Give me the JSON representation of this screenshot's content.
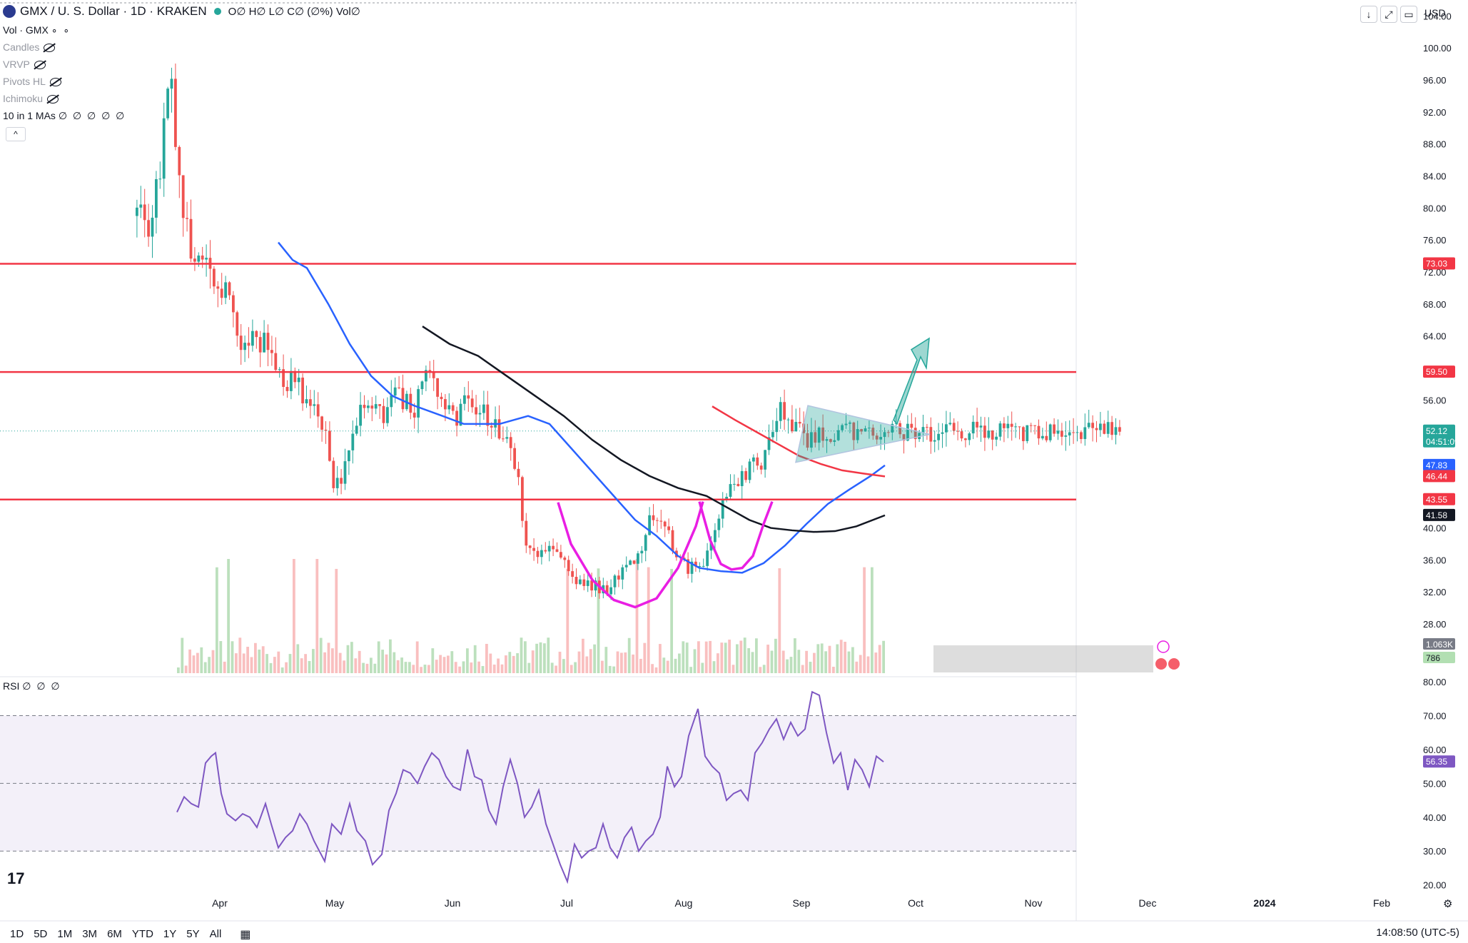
{
  "header": {
    "symbol": "GMX / U. S. Dollar · 1D · KRAKEN",
    "ohlc": "O∅ H∅ L∅ C∅ (∅%) Vol∅",
    "currency": "USD"
  },
  "legend": {
    "vol": "Vol · GMX",
    "candles": "Candles",
    "vrvp": "VRVP",
    "pivots": "Pivots HL",
    "ichimoku": "Ichimoku",
    "mas": "10 in 1 MAs",
    "mas_params": "∅ ∅ ∅ ∅ ∅",
    "collapse": "^"
  },
  "rsi_panel": {
    "label": "RSI",
    "params": "∅ ∅ ∅"
  },
  "toolbar": {
    "timeframes": [
      "1D",
      "5D",
      "1M",
      "3M",
      "6M",
      "YTD",
      "1Y",
      "5Y",
      "All"
    ],
    "clock": "14:08:50 (UTC-5)"
  },
  "chart_data": {
    "type": "candlestick",
    "x_axis_labels": [
      "Apr",
      "May",
      "Jun",
      "Jul",
      "Aug",
      "Sep",
      "Oct",
      "Nov",
      "Dec",
      "2024",
      "Feb"
    ],
    "y_ticks": [
      "104.00",
      "100.00",
      "96.00",
      "92.00",
      "88.00",
      "84.00",
      "80.00",
      "76.00",
      "72.00",
      "68.00",
      "64.00",
      "56.00",
      "40.00",
      "36.00",
      "32.00",
      "28.00"
    ],
    "ylim": [
      21.4,
      106
    ],
    "rsi_ticks": [
      "80.00",
      "70.00",
      "60.00",
      "50.00",
      "40.00",
      "30.00",
      "20.00"
    ],
    "rsi_lim": [
      17.4,
      80
    ],
    "price_badges": [
      {
        "label": "73.03",
        "value": 73.03,
        "color": "#f23645"
      },
      {
        "label": "59.50",
        "value": 59.5,
        "color": "#f23645"
      },
      {
        "label": "52.12",
        "value": 52.12,
        "color": "#26a69a",
        "sub": "04:51:09"
      },
      {
        "label": "47.83",
        "value": 47.83,
        "color": "#2962ff"
      },
      {
        "label": "46.44",
        "value": 46.44,
        "color": "#f23645"
      },
      {
        "label": "43.55",
        "value": 43.55,
        "color": "#f23645"
      },
      {
        "label": "41.58",
        "value": 41.58,
        "color": "#131722"
      }
    ],
    "vol_badges": [
      {
        "label": "1.063K",
        "color": "#787b86"
      },
      {
        "label": "786",
        "color": "#b2dfb2"
      }
    ],
    "rsi_badge": {
      "label": "56.35",
      "value": 56.35,
      "color": "#7e57c2"
    },
    "horizontal_lines": [
      73.03,
      59.5,
      43.55
    ],
    "price_path": [
      [
        190,
        83
      ],
      [
        200,
        80
      ],
      [
        210,
        72
      ],
      [
        220,
        77
      ],
      [
        235,
        75
      ],
      [
        250,
        79
      ],
      [
        270,
        78
      ],
      [
        283,
        86
      ],
      [
        296,
        98
      ],
      [
        305,
        86
      ],
      [
        315,
        80
      ],
      [
        325,
        74
      ],
      [
        345,
        73
      ],
      [
        360,
        71
      ],
      [
        375,
        69
      ],
      [
        388,
        65
      ],
      [
        400,
        63
      ],
      [
        415,
        64
      ],
      [
        430,
        63
      ],
      [
        445,
        60
      ],
      [
        455,
        57
      ],
      [
        470,
        59
      ],
      [
        485,
        56
      ],
      [
        500,
        54
      ],
      [
        515,
        52
      ],
      [
        525,
        45
      ],
      [
        535,
        46
      ],
      [
        550,
        51
      ],
      [
        565,
        55
      ],
      [
        580,
        55
      ],
      [
        595,
        54
      ],
      [
        610,
        57
      ],
      [
        625,
        56
      ],
      [
        640,
        55
      ],
      [
        658,
        60
      ],
      [
        670,
        58
      ],
      [
        685,
        55
      ],
      [
        695,
        53
      ],
      [
        710,
        57
      ],
      [
        725,
        55
      ],
      [
        740,
        54
      ],
      [
        755,
        53
      ],
      [
        770,
        50
      ],
      [
        785,
        46
      ],
      [
        793,
        39
      ],
      [
        805,
        37
      ],
      [
        820,
        37
      ],
      [
        835,
        37
      ],
      [
        850,
        36
      ],
      [
        862,
        34
      ],
      [
        878,
        33
      ],
      [
        890,
        33
      ],
      [
        905,
        32
      ],
      [
        918,
        33
      ],
      [
        930,
        35
      ],
      [
        945,
        36
      ],
      [
        958,
        37
      ],
      [
        968,
        42
      ],
      [
        978,
        42
      ],
      [
        990,
        41
      ],
      [
        1000,
        38
      ],
      [
        1010,
        36
      ],
      [
        1022,
        35
      ],
      [
        1035,
        35
      ],
      [
        1048,
        36
      ],
      [
        1060,
        39
      ],
      [
        1072,
        43
      ],
      [
        1082,
        46
      ],
      [
        1092,
        45
      ],
      [
        1102,
        47
      ],
      [
        1115,
        48
      ],
      [
        1128,
        48
      ],
      [
        1140,
        52
      ],
      [
        1150,
        55
      ],
      [
        1160,
        53
      ],
      [
        1170,
        52
      ],
      [
        1180,
        53
      ],
      [
        1190,
        51
      ],
      [
        1200,
        52
      ],
      [
        1210,
        51
      ],
      [
        1220,
        52
      ],
      [
        1230,
        52
      ],
      [
        1240,
        52.1
      ]
    ],
    "ma_blue": [
      [
        390,
        75.7
      ],
      [
        410,
        73.5
      ],
      [
        430,
        72.5
      ],
      [
        460,
        68
      ],
      [
        490,
        63
      ],
      [
        520,
        59
      ],
      [
        550,
        56.5
      ],
      [
        580,
        55.3
      ],
      [
        620,
        54
      ],
      [
        650,
        53
      ],
      [
        700,
        53
      ],
      [
        740,
        54
      ],
      [
        770,
        53
      ],
      [
        800,
        50
      ],
      [
        830,
        47
      ],
      [
        860,
        44
      ],
      [
        890,
        41
      ],
      [
        920,
        39
      ],
      [
        950,
        36.5
      ],
      [
        980,
        35
      ],
      [
        1010,
        34.6
      ],
      [
        1040,
        34.4
      ],
      [
        1070,
        35.6
      ],
      [
        1100,
        37.8
      ],
      [
        1130,
        40.5
      ],
      [
        1160,
        43
      ],
      [
        1190,
        44.8
      ],
      [
        1220,
        46.5
      ],
      [
        1240,
        47.83
      ]
    ],
    "ma_black": [
      [
        592,
        65.2
      ],
      [
        630,
        63
      ],
      [
        670,
        61.5
      ],
      [
        710,
        59
      ],
      [
        750,
        56.5
      ],
      [
        790,
        54
      ],
      [
        830,
        51
      ],
      [
        870,
        48.5
      ],
      [
        910,
        46.5
      ],
      [
        950,
        45
      ],
      [
        990,
        44
      ],
      [
        1020,
        42.5
      ],
      [
        1050,
        41
      ],
      [
        1080,
        40
      ],
      [
        1110,
        39.7
      ],
      [
        1140,
        39.5
      ],
      [
        1170,
        39.6
      ],
      [
        1200,
        40.2
      ],
      [
        1240,
        41.58
      ]
    ],
    "ma_red": [
      [
        998,
        55.2
      ],
      [
        1030,
        53.5
      ],
      [
        1060,
        52
      ],
      [
        1090,
        50.5
      ],
      [
        1120,
        49
      ],
      [
        1150,
        48
      ],
      [
        1180,
        47.2
      ],
      [
        1210,
        46.8
      ],
      [
        1240,
        46.44
      ]
    ],
    "triangle": [
      [
        1132,
        55.3
      ],
      [
        1303,
        51.7
      ],
      [
        1115,
        48.2
      ]
    ],
    "arrow": [
      [
        1252,
        53.5
      ],
      [
        1285,
        61
      ],
      [
        1277,
        62.3
      ],
      [
        1302,
        63.7
      ],
      [
        1298,
        60
      ],
      [
        1290,
        61.4
      ],
      [
        1257,
        53
      ]
    ],
    "cup_left": [
      [
        782,
        43.2
      ],
      [
        800,
        38
      ],
      [
        830,
        33.5
      ],
      [
        860,
        31
      ],
      [
        890,
        30.1
      ],
      [
        920,
        31.2
      ],
      [
        950,
        35
      ],
      [
        975,
        40.2
      ],
      [
        985,
        43.3
      ]
    ],
    "cup_right": [
      [
        980,
        43.3
      ],
      [
        995,
        38.5
      ],
      [
        1010,
        35.5
      ],
      [
        1025,
        34.8
      ],
      [
        1040,
        35
      ],
      [
        1055,
        36.5
      ],
      [
        1070,
        40.5
      ],
      [
        1082,
        43.3
      ]
    ],
    "rsi_path": [
      [
        248,
        41.5
      ],
      [
        258,
        46
      ],
      [
        268,
        44
      ],
      [
        278,
        43
      ],
      [
        288,
        56
      ],
      [
        296,
        58
      ],
      [
        302,
        59
      ],
      [
        310,
        47
      ],
      [
        318,
        41
      ],
      [
        330,
        39
      ],
      [
        340,
        41
      ],
      [
        350,
        40
      ],
      [
        360,
        37
      ],
      [
        372,
        44
      ],
      [
        380,
        38
      ],
      [
        390,
        31
      ],
      [
        400,
        34
      ],
      [
        410,
        36
      ],
      [
        420,
        41
      ],
      [
        430,
        38
      ],
      [
        440,
        33
      ],
      [
        455,
        27
      ],
      [
        465,
        38
      ],
      [
        478,
        35
      ],
      [
        490,
        44
      ],
      [
        500,
        36
      ],
      [
        512,
        33
      ],
      [
        522,
        26
      ],
      [
        535,
        29
      ],
      [
        545,
        42
      ],
      [
        555,
        47
      ],
      [
        565,
        54
      ],
      [
        575,
        53
      ],
      [
        585,
        50
      ],
      [
        595,
        55
      ],
      [
        605,
        59
      ],
      [
        615,
        57
      ],
      [
        625,
        52
      ],
      [
        635,
        49
      ],
      [
        645,
        48
      ],
      [
        655,
        60
      ],
      [
        665,
        52
      ],
      [
        675,
        51
      ],
      [
        685,
        42
      ],
      [
        695,
        38
      ],
      [
        705,
        49
      ],
      [
        715,
        57
      ],
      [
        725,
        50
      ],
      [
        735,
        40
      ],
      [
        745,
        43
      ],
      [
        755,
        48
      ],
      [
        765,
        38
      ],
      [
        775,
        32
      ],
      [
        785,
        26
      ],
      [
        795,
        21
      ],
      [
        805,
        32
      ],
      [
        815,
        28
      ],
      [
        825,
        30
      ],
      [
        835,
        31
      ],
      [
        845,
        38
      ],
      [
        855,
        31
      ],
      [
        865,
        28
      ],
      [
        875,
        34
      ],
      [
        885,
        37
      ],
      [
        895,
        30
      ],
      [
        905,
        33
      ],
      [
        915,
        35
      ],
      [
        925,
        40
      ],
      [
        935,
        55
      ],
      [
        945,
        49
      ],
      [
        955,
        52
      ],
      [
        965,
        64
      ],
      [
        978,
        72
      ],
      [
        988,
        58
      ],
      [
        998,
        55
      ],
      [
        1008,
        53
      ],
      [
        1018,
        45
      ],
      [
        1028,
        47
      ],
      [
        1038,
        48
      ],
      [
        1048,
        45
      ],
      [
        1058,
        59
      ],
      [
        1068,
        62
      ],
      [
        1078,
        66
      ],
      [
        1088,
        69
      ],
      [
        1098,
        63
      ],
      [
        1108,
        68
      ],
      [
        1118,
        64
      ],
      [
        1128,
        66
      ],
      [
        1138,
        77
      ],
      [
        1148,
        76
      ],
      [
        1158,
        65
      ],
      [
        1168,
        56
      ],
      [
        1178,
        59
      ],
      [
        1188,
        48
      ],
      [
        1198,
        57
      ],
      [
        1208,
        54
      ],
      [
        1218,
        49
      ],
      [
        1228,
        58
      ],
      [
        1238,
        56.35
      ]
    ]
  }
}
